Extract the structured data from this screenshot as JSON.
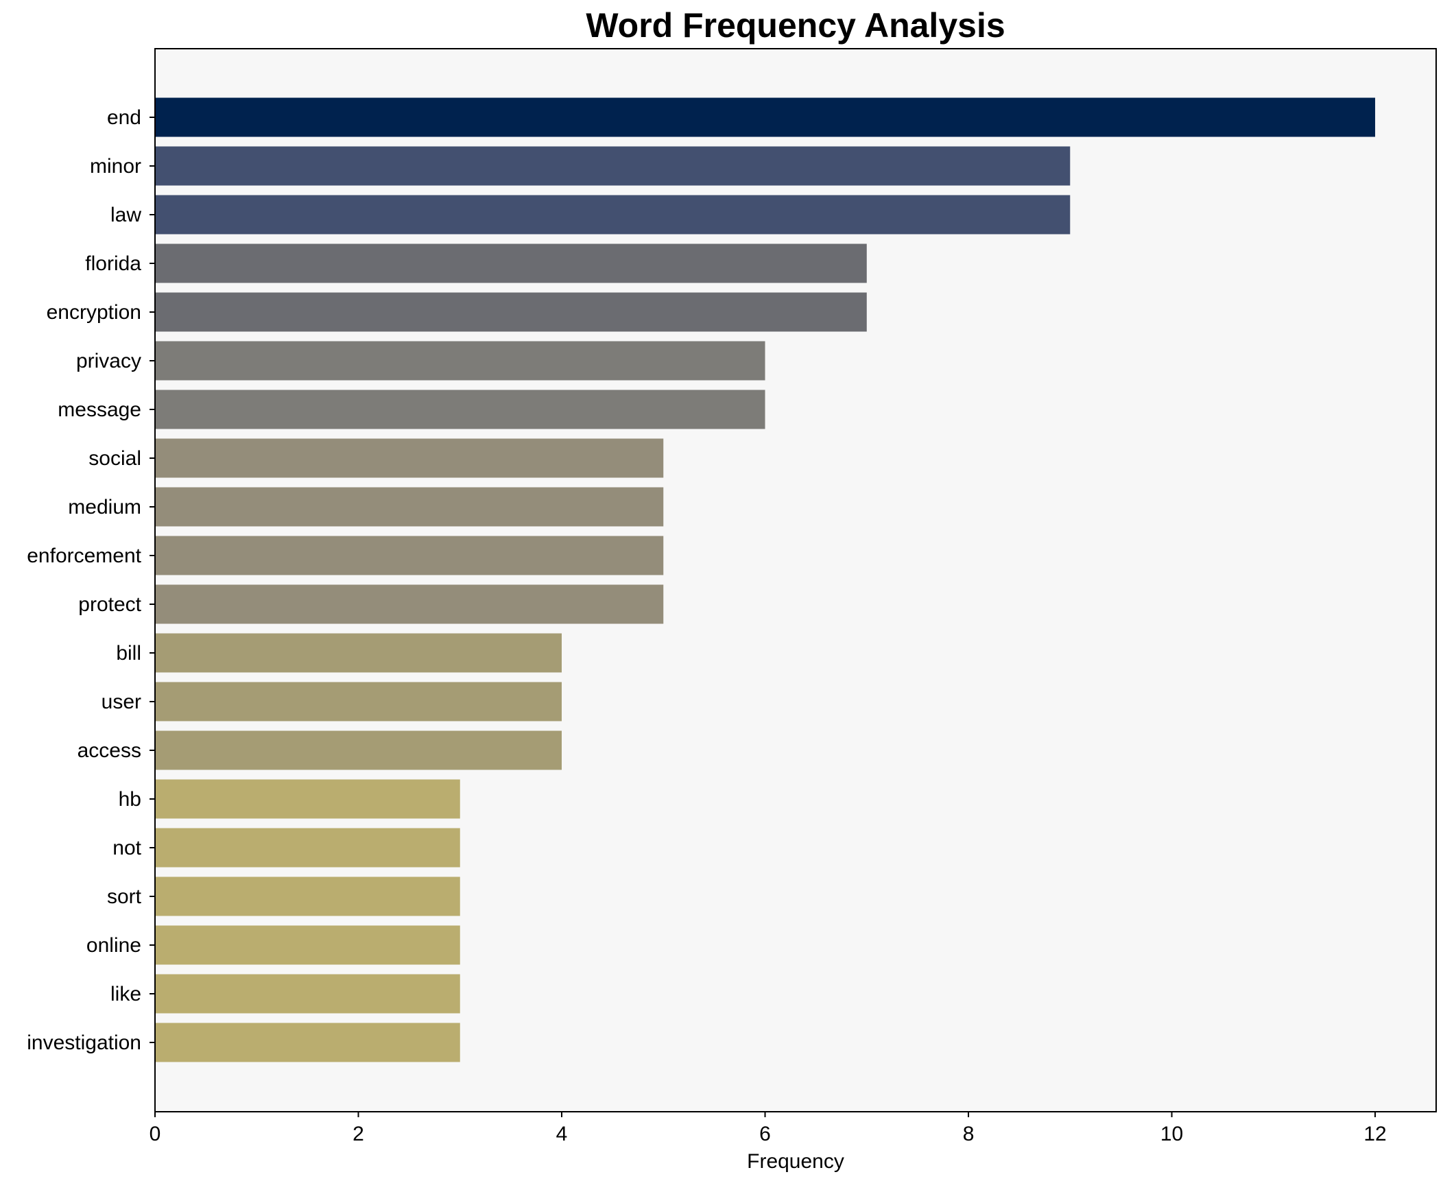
{
  "chart_data": {
    "type": "bar",
    "orientation": "horizontal",
    "title": "Word Frequency Analysis",
    "xlabel": "Frequency",
    "ylabel": "",
    "xlim": [
      0,
      12.6
    ],
    "xticks": [
      0,
      2,
      4,
      6,
      8,
      10,
      12
    ],
    "grid": false,
    "background": "#f7f7f7",
    "categories": [
      "end",
      "minor",
      "law",
      "florida",
      "encryption",
      "privacy",
      "message",
      "social",
      "medium",
      "enforcement",
      "protect",
      "bill",
      "user",
      "access",
      "hb",
      "not",
      "sort",
      "online",
      "like",
      "investigation"
    ],
    "values": [
      12,
      9,
      9,
      7,
      7,
      6,
      6,
      5,
      5,
      5,
      5,
      4,
      4,
      4,
      3,
      3,
      3,
      3,
      3,
      3
    ],
    "colors": [
      "#00224e",
      "#435070",
      "#435070",
      "#6b6c71",
      "#6b6c71",
      "#7d7c78",
      "#7d7c78",
      "#948d7a",
      "#948d7a",
      "#948d7a",
      "#948d7a",
      "#a59c74",
      "#a59c74",
      "#a59c74",
      "#baad6f",
      "#baad6f",
      "#baad6f",
      "#baad6f",
      "#baad6f",
      "#baad6f"
    ]
  }
}
